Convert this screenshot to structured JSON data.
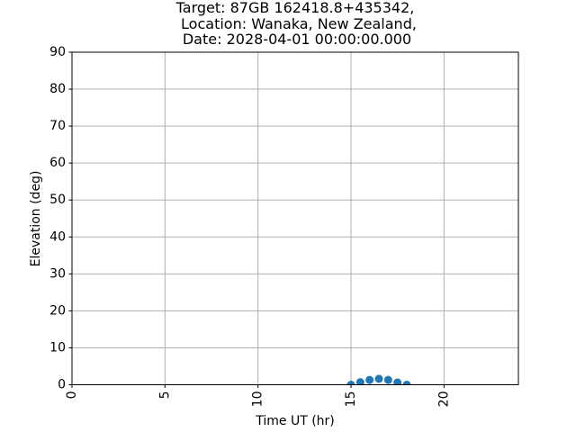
{
  "chart_data": {
    "type": "scatter",
    "title_lines": [
      "Target: 87GB 162418.8+435342,",
      "Location: Wanaka, New Zealand,",
      "Date: 2028-04-01 00:00:00.000"
    ],
    "xlabel": "Time UT (hr)",
    "ylabel": "Elevation (deg)",
    "xlim": [
      0,
      24
    ],
    "ylim": [
      0,
      90
    ],
    "xticks": [
      0,
      5,
      10,
      15,
      20
    ],
    "yticks": [
      0,
      10,
      20,
      30,
      40,
      50,
      60,
      70,
      80,
      90
    ],
    "grid": true,
    "marker_color": "#1f77b4",
    "series": [
      {
        "x": [
          15.0,
          15.5,
          16.0,
          16.5,
          17.0,
          17.5,
          18.0
        ],
        "y": [
          0.0,
          0.7,
          1.3,
          1.6,
          1.3,
          0.6,
          0.0
        ]
      }
    ]
  }
}
